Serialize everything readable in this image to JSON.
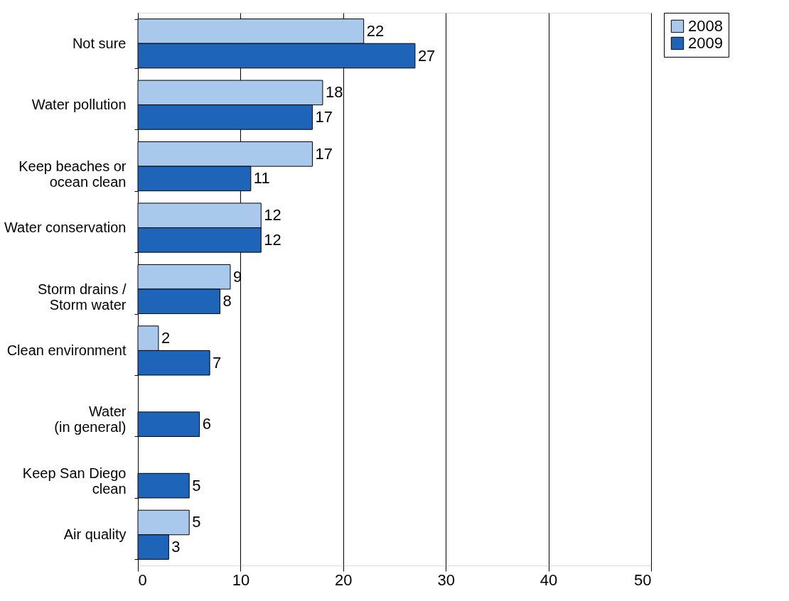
{
  "chart_data": {
    "type": "bar",
    "orientation": "horizontal",
    "categories": [
      "Not sure",
      "Water pollution",
      "Keep beaches or\nocean clean",
      "Water conservation",
      "Storm drains /\nStorm water",
      "Clean environment",
      "Water\n(in general)",
      "Keep San Diego\nclean",
      "Air quality"
    ],
    "series": [
      {
        "name": "2008",
        "color": "#a9c9ec",
        "values": [
          22,
          18,
          17,
          12,
          9,
          2,
          null,
          null,
          5
        ]
      },
      {
        "name": "2009",
        "color": "#1e64b8",
        "values": [
          27,
          17,
          11,
          12,
          8,
          7,
          6,
          5,
          3
        ]
      }
    ],
    "xlim": [
      0,
      50
    ],
    "xticks": [
      0,
      10,
      20,
      30,
      40,
      50
    ],
    "grid": "x",
    "legend": "right",
    "data_labels": true
  }
}
